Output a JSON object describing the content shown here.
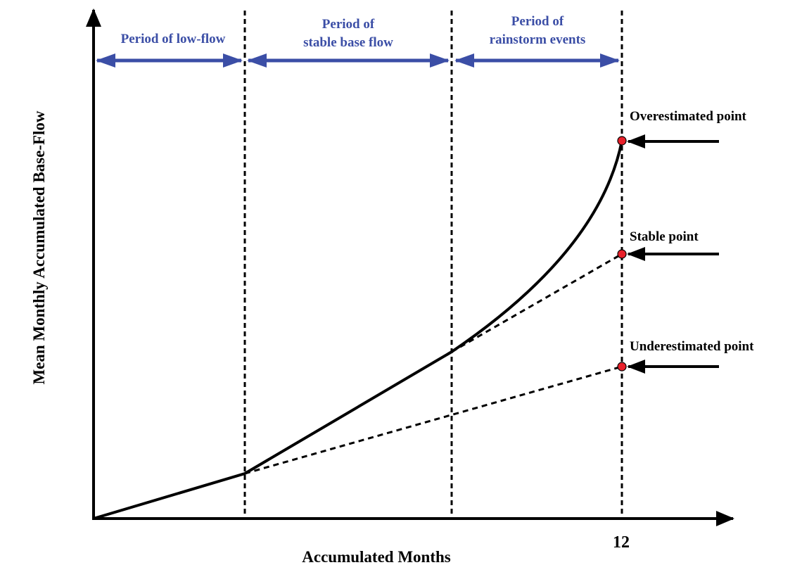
{
  "axes": {
    "y_label": "Mean Monthly Accumulated Base-Flow",
    "x_label": "Accumulated Months",
    "x_tick": "12"
  },
  "periods": [
    {
      "lines": [
        "Period of low-flow"
      ]
    },
    {
      "lines": [
        "Period of",
        "stable base flow"
      ]
    },
    {
      "lines": [
        "Period of",
        "rainstorm events"
      ]
    }
  ],
  "points": [
    {
      "label": "Overestimated point"
    },
    {
      "label": "Stable point"
    },
    {
      "label": "Underestimated point"
    }
  ]
}
